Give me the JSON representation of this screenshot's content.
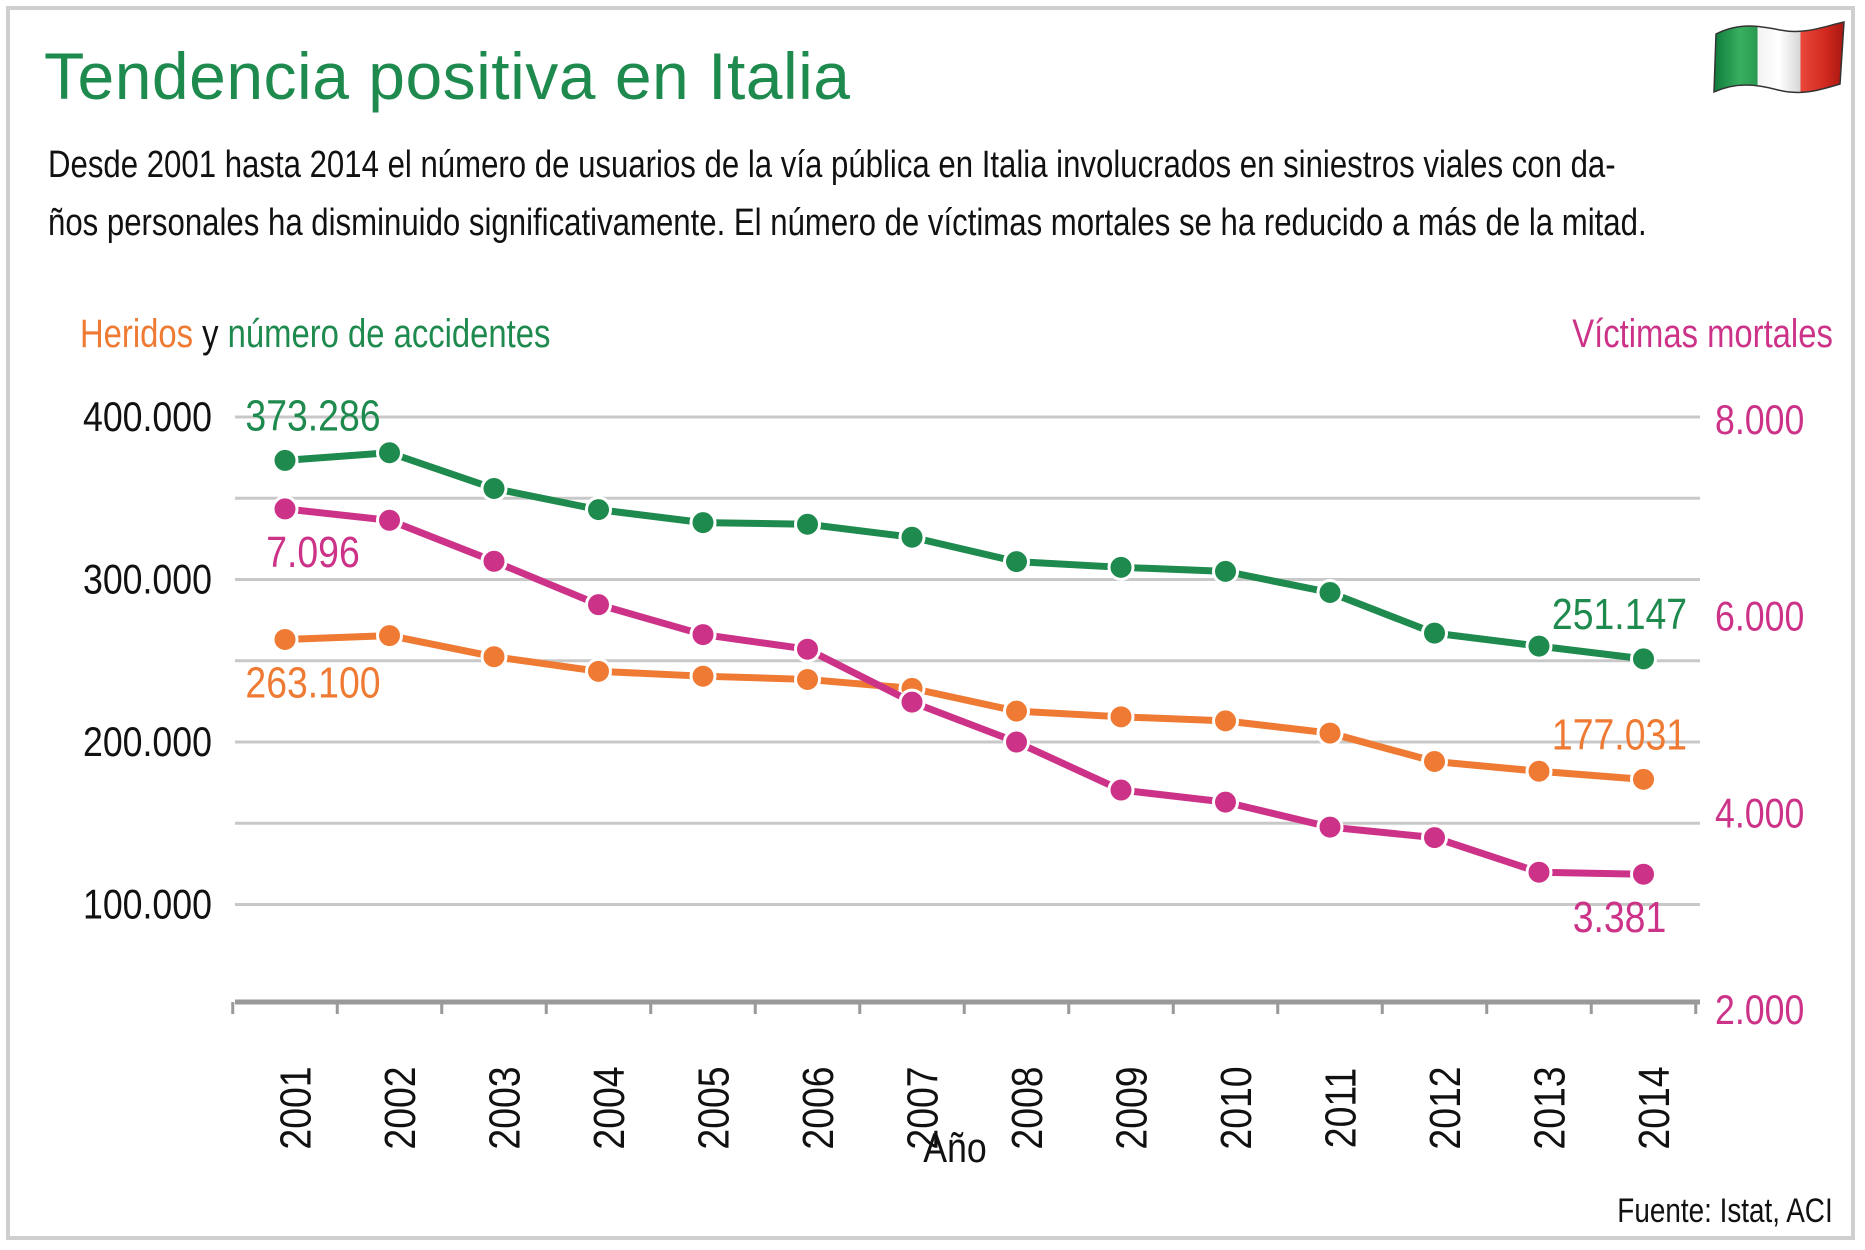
{
  "title": "Tendencia positiva en Italia",
  "description_line1": "Desde 2001 hasta 2014 el número de usuarios de la vía pública en Italia involucrados en siniestros viales con da-",
  "description_line2": "ños personales ha disminuido significativamente. El número de víctimas mortales se ha reducido a más de la mitad.",
  "legend": {
    "injured": "Heridos",
    "connector": "y",
    "accidents": "número de accidentes",
    "fatalities": "Víctimas mortales"
  },
  "source": "Fuente: Istat, ACI",
  "colors": {
    "accidents": "#1e8a4e",
    "injured": "#ee7a33",
    "fatalities": "#cc3388",
    "grid": "#c8c8c8",
    "axis": "#999999"
  },
  "chart_data": {
    "type": "line",
    "title": "Tendencia positiva en Italia",
    "xlabel": "Año",
    "ylabel_left": "Heridos y número de accidentes",
    "ylabel_right": "Víctimas mortales",
    "categories": [
      "2001",
      "2002",
      "2003",
      "2004",
      "2005",
      "2006",
      "2007",
      "2008",
      "2009",
      "2010",
      "2011",
      "2012",
      "2013",
      "2014"
    ],
    "ylim_left": [
      40000,
      400000
    ],
    "yticks_left": [
      100000,
      200000,
      300000,
      400000
    ],
    "ytick_labels_left": [
      "100.000",
      "200.000",
      "300.000",
      "400.000"
    ],
    "ylim_right": [
      2000,
      8000
    ],
    "yticks_right": [
      2000,
      4000,
      6000,
      8000
    ],
    "ytick_labels_right": [
      "2.000",
      "4.000",
      "6.000",
      "8.000"
    ],
    "grid_left": [
      100000,
      150000,
      200000,
      250000,
      300000,
      350000,
      400000
    ],
    "series": [
      {
        "name": "Número de accidentes",
        "axis": "left",
        "color": "#1e8a4e",
        "values": [
          373286,
          378000,
          356000,
          343000,
          335000,
          334000,
          326000,
          311000,
          307500,
          305000,
          292000,
          267000,
          259000,
          251147
        ],
        "labels": [
          {
            "index": 0,
            "text": "373.286",
            "position": "above"
          },
          {
            "index": 13,
            "text": "251.147",
            "position": "above"
          }
        ]
      },
      {
        "name": "Heridos",
        "axis": "left",
        "color": "#ee7a33",
        "values": [
          263100,
          265500,
          252500,
          243500,
          240500,
          238500,
          233000,
          219000,
          215500,
          213000,
          205500,
          188000,
          182000,
          177031
        ],
        "labels": [
          {
            "index": 0,
            "text": "263.100",
            "position": "below"
          },
          {
            "index": 13,
            "text": "177.031",
            "position": "above"
          }
        ]
      },
      {
        "name": "Víctimas mortales",
        "axis": "right",
        "color": "#cc3388",
        "values": [
          7096,
          6980,
          6563,
          6122,
          5818,
          5669,
          5131,
          4725,
          4237,
          4114,
          3860,
          3753,
          3401,
          3381
        ],
        "labels": [
          {
            "index": 0,
            "text": "7.096",
            "position": "below"
          },
          {
            "index": 13,
            "text": "3.381",
            "position": "below"
          }
        ]
      }
    ]
  }
}
